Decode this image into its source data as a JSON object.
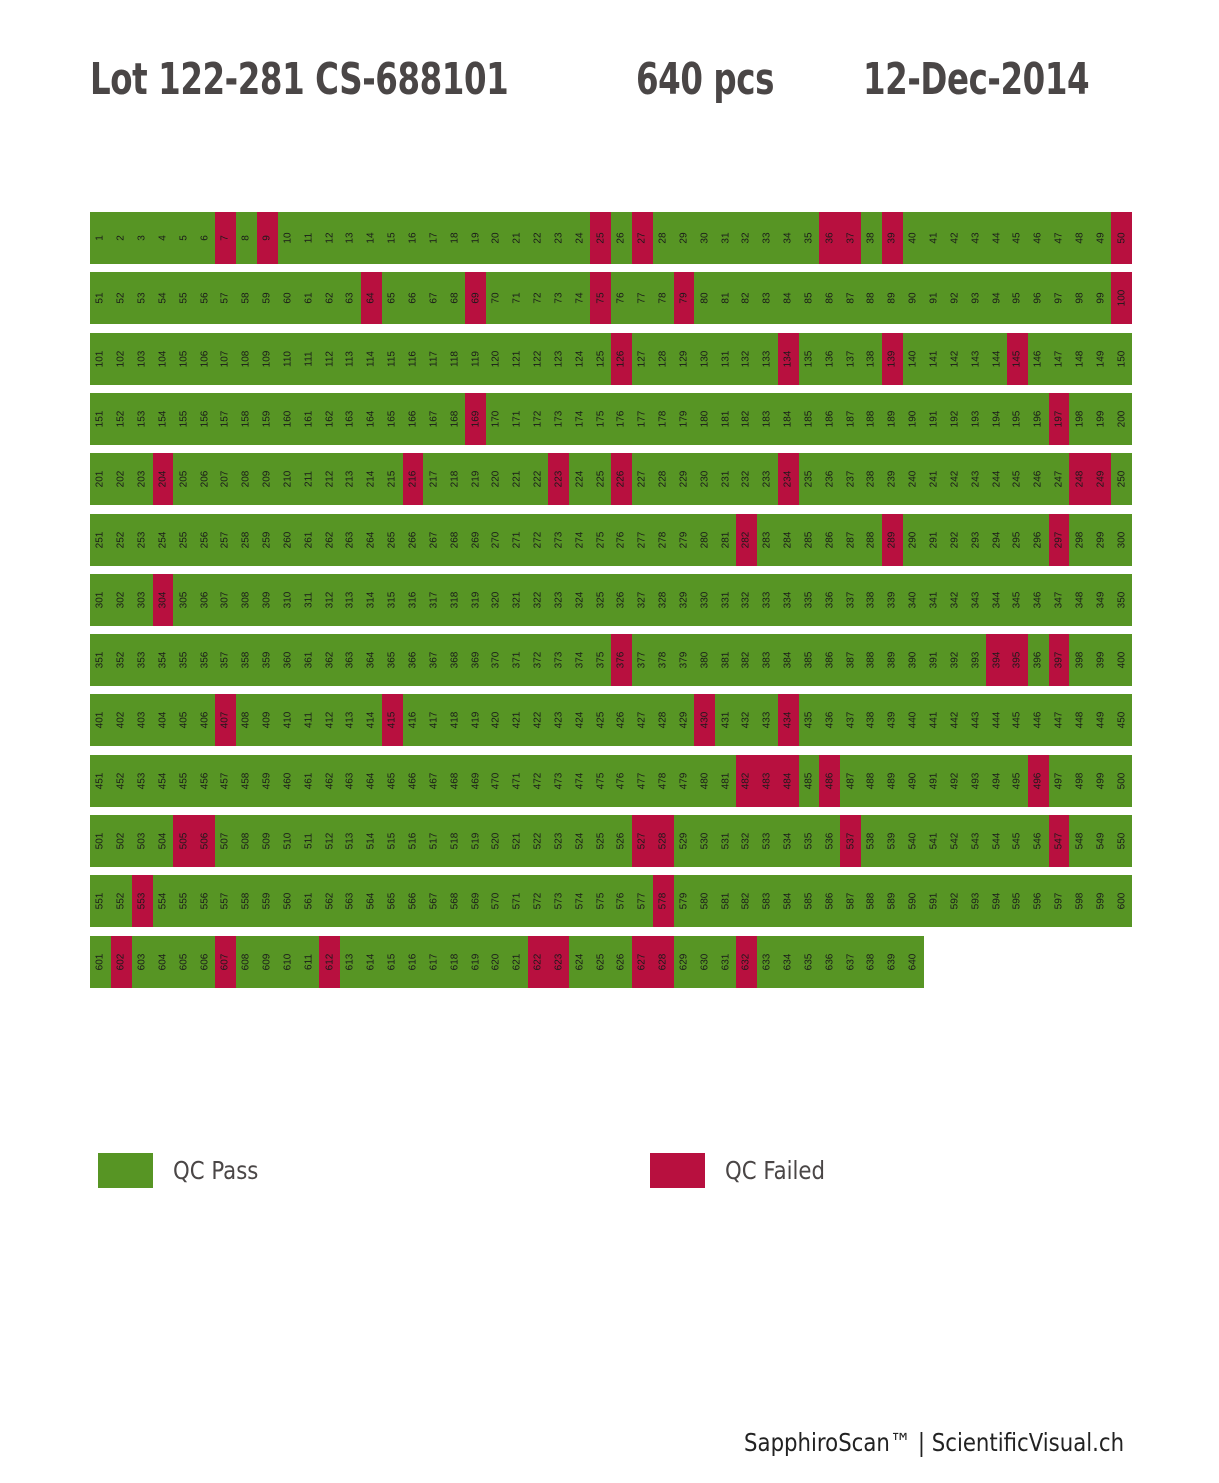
{
  "header": {
    "lot": "Lot 122-281 CS-688101",
    "count": "640 pcs",
    "date": "12-Dec-2014"
  },
  "colors": {
    "pass": "#579524",
    "fail": "#b8103f"
  },
  "chart_data": {
    "type": "heatmap",
    "total": 640,
    "columns": 50,
    "failed": [
      7,
      9,
      25,
      27,
      36,
      37,
      39,
      50,
      64,
      69,
      75,
      79,
      100,
      126,
      134,
      139,
      145,
      169,
      197,
      204,
      216,
      223,
      226,
      234,
      248,
      249,
      282,
      289,
      297,
      304,
      376,
      394,
      395,
      397,
      407,
      415,
      430,
      434,
      482,
      483,
      484,
      486,
      496,
      505,
      506,
      527,
      528,
      537,
      547,
      553,
      578,
      602,
      607,
      612,
      622,
      623,
      627,
      628,
      632
    ],
    "legend": [
      {
        "label": "QC Pass",
        "status": "pass"
      },
      {
        "label": "QC Failed",
        "status": "fail"
      }
    ]
  },
  "footer": "SapphiroScan™ | ScientificVisual.ch"
}
